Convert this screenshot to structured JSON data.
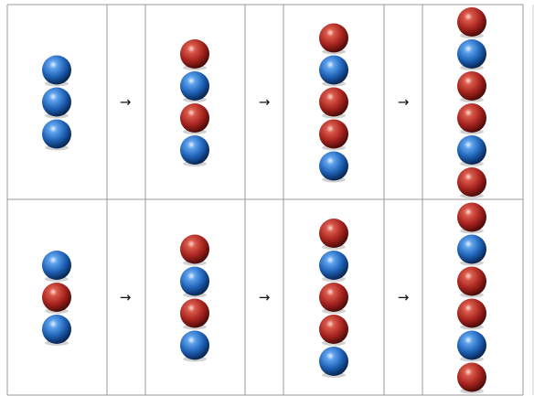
{
  "colors": {
    "blue": "#1f63b8",
    "red": "#a8241f",
    "grid": "#9a9a9a"
  },
  "arrow": "→",
  "rows": [
    {
      "stacks": [
        [
          "blue",
          "blue",
          "blue"
        ],
        [
          "red",
          "blue",
          "red",
          "blue"
        ],
        [
          "red",
          "blue",
          "red",
          "red",
          "blue"
        ],
        [
          "red",
          "blue",
          "red",
          "red",
          "blue",
          "red"
        ]
      ]
    },
    {
      "stacks": [
        [
          "blue",
          "red",
          "blue"
        ],
        [
          "red",
          "blue",
          "red",
          "blue"
        ],
        [
          "red",
          "blue",
          "red",
          "red",
          "blue"
        ],
        [
          "red",
          "blue",
          "red",
          "red",
          "blue",
          "red"
        ]
      ]
    }
  ]
}
